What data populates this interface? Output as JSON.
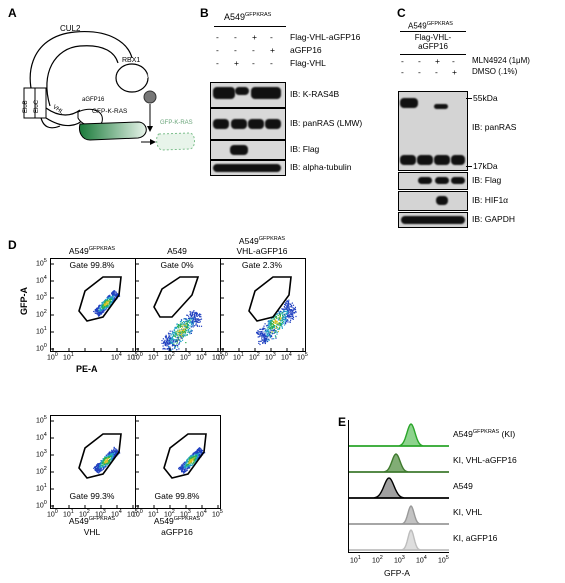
{
  "panels": {
    "a": "A",
    "b": "B",
    "c": "C",
    "d": "D",
    "e": "E"
  },
  "schematic": {
    "cul2": "CUL2",
    "rbx1": "RBX1",
    "ub": "Ub",
    "elob": "EloB",
    "eloc": "EloC",
    "vhl": "VHL",
    "agfp16": "aGFP16",
    "target": "GFP-K-RAS",
    "degraded": "GFP-K-RAS"
  },
  "blot_b": {
    "cell_line": "A549",
    "cell_line_sup": "GFPKRAS",
    "rows": [
      {
        "label": "Flag-VHL-aGFP16",
        "signs": [
          "-",
          "-",
          "+",
          "-"
        ]
      },
      {
        "label": "aGFP16",
        "signs": [
          "-",
          "-",
          "-",
          "+"
        ]
      },
      {
        "label": "Flag-VHL",
        "signs": [
          "-",
          "+",
          "-",
          "-"
        ]
      }
    ],
    "ib": [
      "IB: K-RAS4B",
      "IB: panRAS (LMW)",
      "IB: Flag",
      "IB: alpha-tubulin"
    ]
  },
  "blot_c": {
    "cell_line": "A549",
    "cell_line_sup": "GFPKRAS",
    "header": "Flag-VHL-aGFP16",
    "rows": [
      {
        "label": "MLN4924 (1μM)",
        "signs": [
          "-",
          "-",
          "+",
          "-"
        ]
      },
      {
        "label": "DMSO (.1%)",
        "signs": [
          "-",
          "-",
          "-",
          "+"
        ]
      }
    ],
    "mw": [
      "55kDa",
      "17kDa"
    ],
    "ib": [
      "IB: panRAS",
      "IB: Flag",
      "IB: HIF1α",
      "IB: GAPDH"
    ]
  },
  "facs": {
    "xlabel": "PE-A",
    "ylabel": "GFP-A",
    "ticks": [
      "10",
      "10",
      "10",
      "10",
      "10",
      "10"
    ],
    "tick_exp": [
      "0",
      "1",
      "2",
      "3",
      "4",
      "5"
    ],
    "plots": [
      {
        "title_main": "A549",
        "title_sup": "GFPKRAS",
        "gate": "Gate 99.8%"
      },
      {
        "title_main": "A549",
        "title_sup": "",
        "gate": "Gate 0%"
      },
      {
        "title_main": "A549",
        "title_sup": "GFPKRAS",
        "title_line2": "VHL-aGFP16",
        "gate": "Gate 2.3%"
      },
      {
        "title_main": "A549",
        "title_sup": "GFPKRAS",
        "title_line2": "VHL",
        "gate": "Gate 99.3%"
      },
      {
        "title_main": "A549",
        "title_sup": "GFPKRAS",
        "title_line2": "aGFP16",
        "gate": "Gate 99.8%"
      }
    ]
  },
  "histogram": {
    "xlabel": "GFP-A",
    "ticks": [
      "10",
      "10",
      "10",
      "10",
      "10"
    ],
    "tick_exp": [
      "1",
      "2",
      "3",
      "4",
      "5"
    ],
    "series": [
      {
        "label_main": "A549",
        "label_sup": "GFPKRAS",
        "label_tail": " (KI)",
        "color": "#2aa52a"
      },
      {
        "label_main": "KI, VHL-aGFP16",
        "label_sup": "",
        "label_tail": "",
        "color": "#3f7a2e"
      },
      {
        "label_main": "A549",
        "label_sup": "",
        "label_tail": "",
        "color": "#000000"
      },
      {
        "label_main": "KI, VHL",
        "label_sup": "",
        "label_tail": "",
        "color": "#999999"
      },
      {
        "label_main": "KI,  aGFP16",
        "label_sup": "",
        "label_tail": "",
        "color": "#bdbdbd"
      }
    ]
  }
}
